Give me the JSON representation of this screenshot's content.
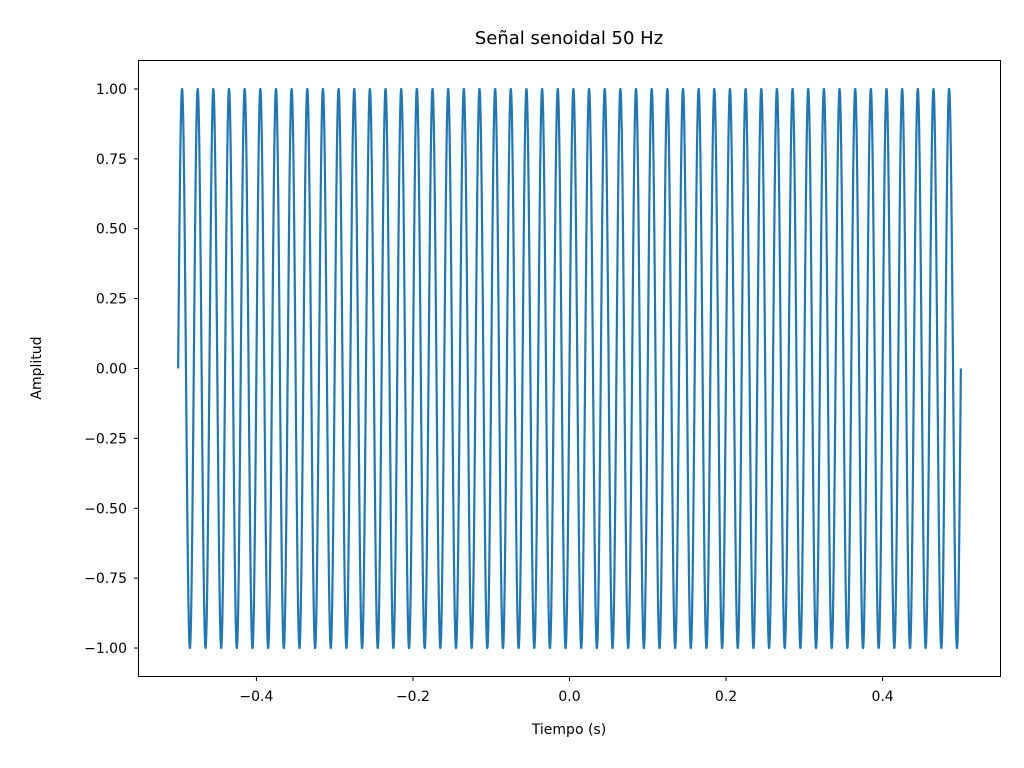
{
  "chart_data": {
    "type": "line",
    "title": "Señal senoidal 50 Hz",
    "xlabel": "Tiempo (s)",
    "ylabel": "Amplitud",
    "xlim": [
      -0.55,
      0.55
    ],
    "ylim": [
      -1.1,
      1.1
    ],
    "xticks": [
      -0.4,
      -0.2,
      0.0,
      0.2,
      0.4
    ],
    "xtick_labels": [
      "−0.4",
      "−0.2",
      "0.0",
      "0.2",
      "0.4"
    ],
    "yticks": [
      1.0,
      0.75,
      0.5,
      0.25,
      0.0,
      -0.25,
      -0.5,
      -0.75,
      -1.0
    ],
    "ytick_labels": [
      "1.00",
      "0.75",
      "0.50",
      "0.25",
      "0.00",
      "−0.25",
      "−0.50",
      "−0.75",
      "−1.00"
    ],
    "grid": false,
    "legend": "none",
    "series": [
      {
        "function": "sin(2*pi*50*t)",
        "frequency_hz": 50,
        "amplitude": 1.0,
        "t_range": [
          -0.5,
          0.5
        ],
        "color": "#1f77b4"
      }
    ]
  }
}
